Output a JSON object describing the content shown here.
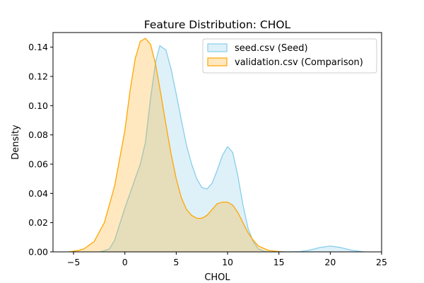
{
  "chart_data": {
    "type": "area",
    "title": "Feature Distribution: CHOL",
    "xlabel": "CHOL",
    "ylabel": "Density",
    "xlim": [
      -7,
      25
    ],
    "ylim": [
      0,
      0.15
    ],
    "x_ticks": [
      -5,
      0,
      5,
      10,
      15,
      20,
      25
    ],
    "y_ticks": [
      0.0,
      0.02,
      0.04,
      0.06,
      0.08,
      0.1,
      0.12,
      0.14
    ],
    "y_tick_labels": [
      "0.00",
      "0.02",
      "0.04",
      "0.06",
      "0.08",
      "0.10",
      "0.12",
      "0.14"
    ],
    "grid": false,
    "legend": "top-right",
    "series": [
      {
        "name": "seed.csv (Seed)",
        "color": "#87ceeb",
        "fill_opacity": 0.28,
        "x": [
          -2.4,
          -1.5,
          -1,
          0,
          1,
          1.5,
          2,
          2.5,
          3,
          3.4,
          4,
          4.5,
          5,
          5.5,
          6,
          6.5,
          7,
          7.5,
          8,
          8.5,
          9,
          9.5,
          10,
          10.5,
          11,
          11.5,
          12,
          12.5,
          13,
          13.5,
          14,
          16,
          17,
          18,
          19,
          20,
          21,
          22,
          23.3
        ],
        "y": [
          0.0,
          0.002,
          0.008,
          0.03,
          0.05,
          0.06,
          0.075,
          0.105,
          0.13,
          0.141,
          0.138,
          0.125,
          0.108,
          0.09,
          0.073,
          0.06,
          0.05,
          0.044,
          0.043,
          0.047,
          0.056,
          0.066,
          0.072,
          0.068,
          0.052,
          0.032,
          0.016,
          0.007,
          0.002,
          0.0005,
          0.0,
          0.0,
          0.0002,
          0.0012,
          0.003,
          0.004,
          0.003,
          0.0012,
          0.0
        ]
      },
      {
        "name": "validation.csv (Comparison)",
        "color": "#ffa500",
        "fill_opacity": 0.25,
        "x": [
          -5.4,
          -4.5,
          -4,
          -3,
          -2,
          -1,
          0,
          0.5,
          1,
          1.5,
          2,
          2.5,
          3,
          3.5,
          4,
          4.5,
          5,
          5.5,
          6,
          6.5,
          7,
          7.5,
          8,
          8.5,
          9,
          9.5,
          10,
          10.5,
          11,
          11.5,
          12,
          12.5,
          13,
          14,
          15,
          15.5
        ],
        "y": [
          0.0,
          0.001,
          0.002,
          0.007,
          0.02,
          0.045,
          0.083,
          0.11,
          0.132,
          0.144,
          0.146,
          0.142,
          0.128,
          0.108,
          0.087,
          0.067,
          0.05,
          0.037,
          0.029,
          0.025,
          0.023,
          0.023,
          0.025,
          0.029,
          0.033,
          0.034,
          0.034,
          0.032,
          0.027,
          0.02,
          0.013,
          0.008,
          0.004,
          0.001,
          0.0002,
          0.0
        ]
      }
    ]
  }
}
